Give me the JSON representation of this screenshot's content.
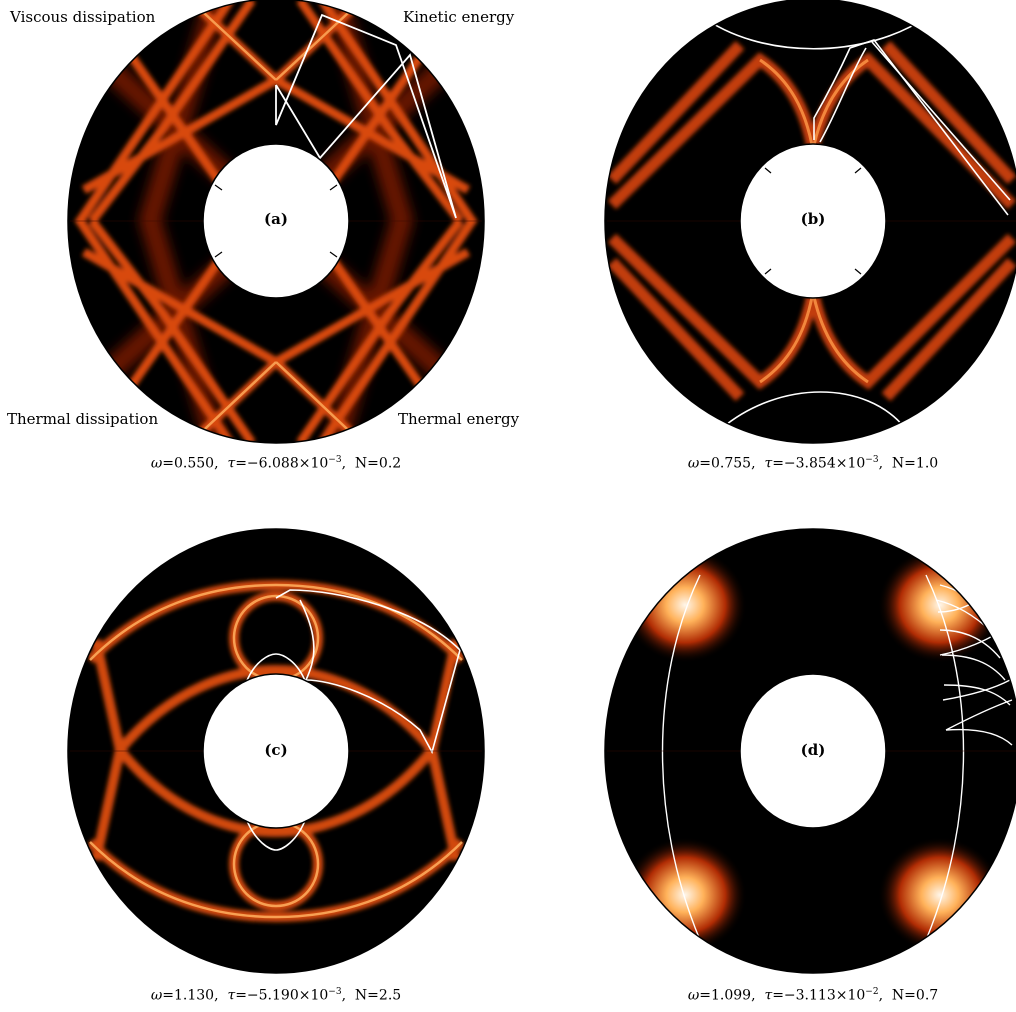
{
  "corner_labels": {
    "viscous": "Viscous dissipation",
    "kinetic": "Kinetic energy",
    "thermal_diss": "Thermal dissipation",
    "thermal_energy": "Thermal energy"
  },
  "panels": [
    {
      "label": "(a)",
      "omega": "0.550",
      "tau_mantissa": "−6.088",
      "tau_exp": "−3",
      "N": "0.2"
    },
    {
      "label": "(b)",
      "omega": "0.755",
      "tau_mantissa": "−3.854",
      "tau_exp": "−3",
      "N": "1.0"
    },
    {
      "label": "(c)",
      "omega": "1.130",
      "tau_mantissa": "−5.190",
      "tau_exp": "−3",
      "N": "2.5"
    },
    {
      "label": "(d)",
      "omega": "1.099",
      "tau_mantissa": "−3.113",
      "tau_exp": "−2",
      "N": "0.7"
    }
  ],
  "symbols": {
    "omega": "ω",
    "tau": "τ",
    "times_ten": "×10",
    "N": "N"
  },
  "colors": {
    "background": "#000000",
    "ray": "#ffffff",
    "low": "#3a0600",
    "mid": "#c83a08",
    "high": "#ffb060",
    "peak": "#fff4e6"
  }
}
